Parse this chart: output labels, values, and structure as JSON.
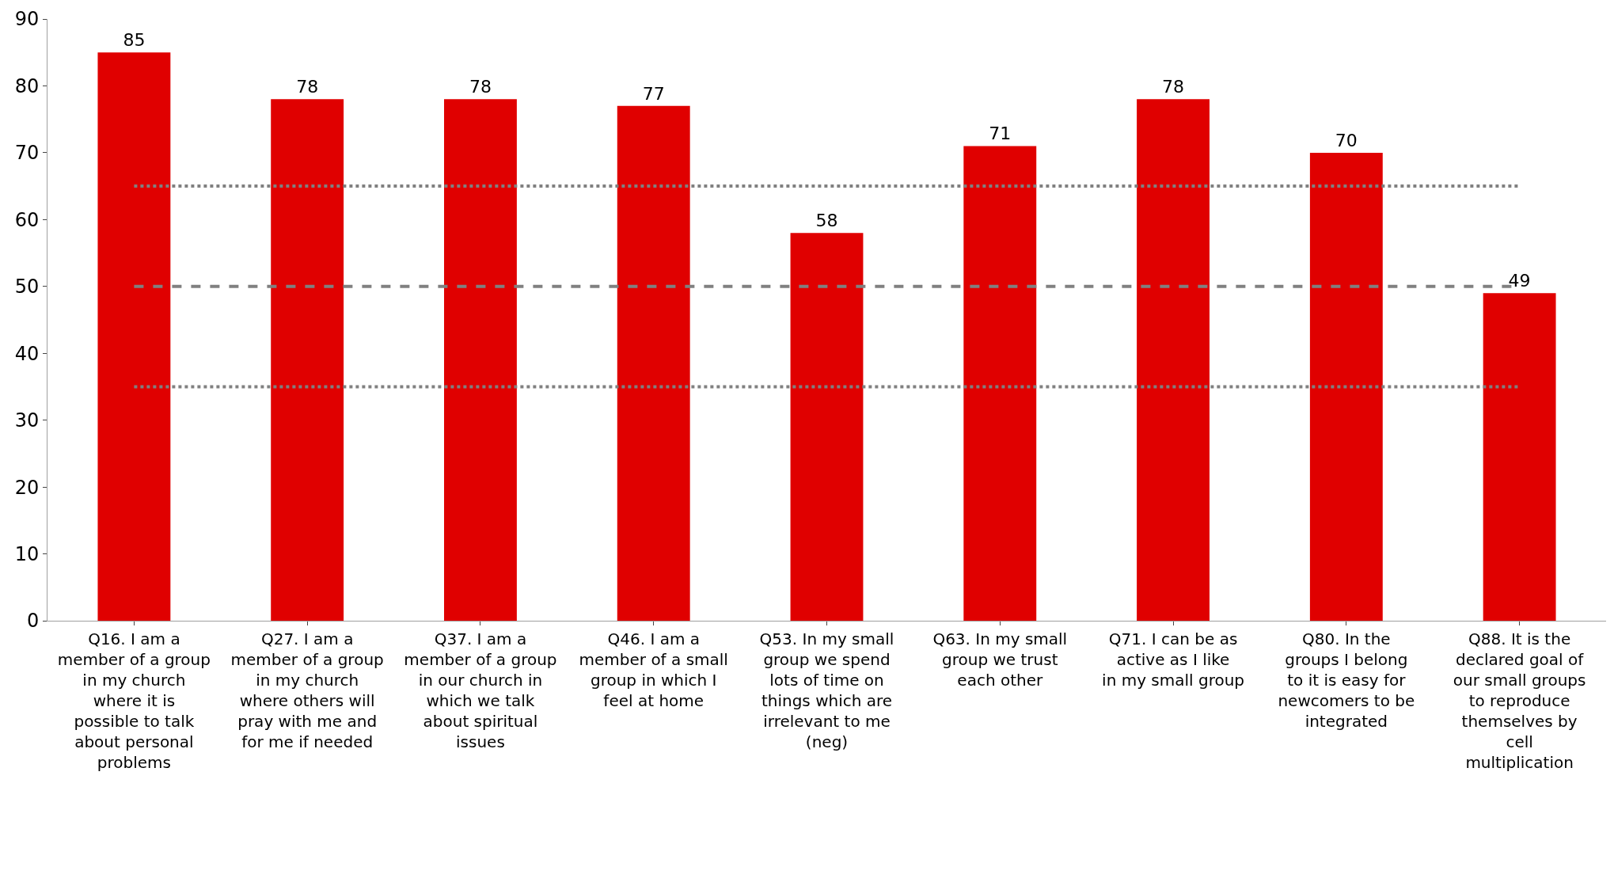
{
  "chart_data": {
    "type": "bar",
    "categories": [
      "Q16. I am a member of a group in my church where it is possible to talk about personal problems",
      "Q27. I am a member of a group in my church where others will pray with me and for me if needed",
      "Q37. I am a member of a group in our church in which we talk about spiritual issues",
      "Q46. I am a member of a small group in which I feel at home",
      "Q53. In my small group we spend lots of time on things which are irrelevant to me (neg)",
      "Q63. In my small group we trust each other",
      "Q71. I can be as active as I like in my small group",
      "Q80. In the groups I belong to it is easy for newcomers to be integrated",
      "Q88. It is the declared goal of our small groups to reproduce themselves by cell multiplication"
    ],
    "values": [
      85,
      78,
      78,
      77,
      58,
      71,
      78,
      70,
      49
    ],
    "color": "#e00000",
    "data_labels": true,
    "ylim": [
      0,
      90
    ],
    "yticks": [
      0,
      10,
      20,
      30,
      40,
      50,
      60,
      70,
      80,
      90
    ],
    "ref_lines": [
      {
        "axis": "y",
        "value": 65,
        "color": "#808080",
        "line_style": "dotted"
      },
      {
        "axis": "y",
        "value": 50,
        "color": "#808080",
        "line_style": "dashed"
      },
      {
        "axis": "y",
        "value": 35,
        "color": "#808080",
        "line_style": "dotted"
      }
    ]
  }
}
